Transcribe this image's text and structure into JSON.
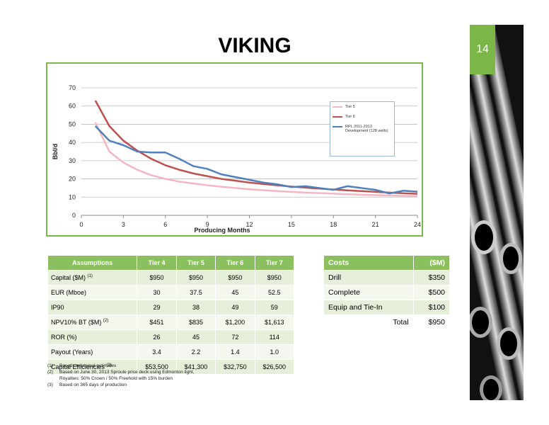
{
  "title": "VIKING",
  "page_number": "14",
  "chart_data": {
    "type": "line",
    "x_label": "Producing Months",
    "y_label": "Bbl/d",
    "x": [
      1,
      2,
      3,
      4,
      5,
      6,
      7,
      8,
      9,
      10,
      11,
      12,
      13,
      14,
      15,
      16,
      17,
      18,
      19,
      20,
      21,
      22,
      23,
      24
    ],
    "series": [
      {
        "name": "Tier 5",
        "color": "#f4b6c2",
        "values": [
          51,
          35,
          29,
          25,
          22,
          20,
          18.5,
          17.5,
          16.5,
          15.7,
          15,
          14.3,
          13.8,
          13.3,
          12.9,
          12.5,
          12.2,
          11.9,
          11.6,
          11.3,
          11.1,
          10.9,
          10.7,
          10.5
        ]
      },
      {
        "name": "Tier 6",
        "color": "#c0504d",
        "values": [
          63,
          49,
          41,
          35.5,
          31,
          27.5,
          25,
          23,
          21.5,
          20,
          19,
          18,
          17.2,
          16.5,
          15.8,
          15.2,
          14.7,
          14.2,
          13.7,
          13.3,
          12.9,
          12.5,
          12.1,
          11.8
        ]
      },
      {
        "name": "RPL 2011-2013 Development (128 wells)",
        "color": "#4f81bd",
        "values": [
          49,
          41,
          38.5,
          35,
          34.5,
          34.5,
          31,
          27,
          25.5,
          22.5,
          21,
          19.5,
          18,
          17,
          15.5,
          16,
          15,
          14,
          16,
          15,
          14,
          12,
          13.5,
          13
        ]
      }
    ],
    "xlim": [
      0,
      24
    ],
    "xticks": [
      0,
      3,
      6,
      9,
      12,
      15,
      18,
      21,
      24
    ],
    "ylim": [
      0,
      70
    ],
    "yticks": [
      0,
      10,
      20,
      30,
      40,
      50,
      60,
      70
    ],
    "grid": true,
    "legend": "upper right"
  },
  "assumptions": {
    "header": [
      "Assumptions",
      "Tier 4",
      "Tier 5",
      "Tier 6",
      "Tier 7"
    ],
    "rows": [
      {
        "label": "Capital ($M)",
        "note": "(1)",
        "values": [
          "$950",
          "$950",
          "$950",
          "$950"
        ]
      },
      {
        "label": "EUR (Mboe)",
        "values": [
          "30",
          "37.5",
          "45",
          "52.5"
        ]
      },
      {
        "label": "IP90",
        "values": [
          "29",
          "38",
          "49",
          "59"
        ]
      },
      {
        "label": "NPV10% BT ($M)",
        "note": "(2)",
        "values": [
          "$451",
          "$835",
          "$1,200",
          "$1,613"
        ]
      },
      {
        "label": "ROR (%)",
        "values": [
          "26",
          "45",
          "72",
          "114"
        ]
      },
      {
        "label": "Payout (Years)",
        "values": [
          "3.4",
          "2.2",
          "1.4",
          "1.0"
        ]
      },
      {
        "label": "Capital Efficiencies",
        "note": "(3)",
        "values": [
          "$53,500",
          "$41,300",
          "$32,750",
          "$26,500"
        ]
      }
    ]
  },
  "costs": {
    "header": [
      "Costs",
      "($M)"
    ],
    "rows": [
      [
        "Drill",
        "$350"
      ],
      [
        "Complete",
        "$500"
      ],
      [
        "Equip and Tie-In",
        "$100"
      ],
      [
        "Total",
        "$950"
      ]
    ]
  },
  "footnotes": [
    {
      "marker": "(1)",
      "lines": [
        "Based on internal estimates"
      ]
    },
    {
      "marker": "(2)",
      "lines": [
        "Based on June 30, 2013 Sproule price deck using Edmonton light,",
        "Royalties: 50% Crown / 50% Freehold with 15% burden"
      ]
    },
    {
      "marker": "(3)",
      "lines": [
        "Based on 365 days of production"
      ]
    }
  ]
}
